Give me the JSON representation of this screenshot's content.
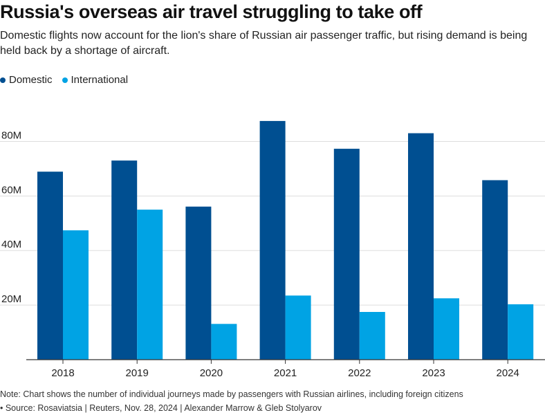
{
  "header": {
    "title": "Russia's overseas air travel struggling to take off",
    "subtitle": "Domestic flights now account for the lion's share of Russian air passenger traffic, but rising demand is being held back by a shortage of aircraft."
  },
  "footer": {
    "note": "Note: Chart shows the number of individual journeys made by passengers with Russian airlines, including foreign citizens",
    "source": "• Source: Rosaviatsia | Reuters, Nov. 28, 2024 | Alexander Marrow & Gleb Stolyarov"
  },
  "colors": {
    "domestic": "#004f91",
    "international": "#00a3e4",
    "grid": "#dddddd",
    "axis": "#333333"
  },
  "chart_data": {
    "type": "bar",
    "title": "Russia's overseas air travel struggling to take off",
    "subtitle": "Domestic flights now account for the lion's share of Russian air passenger traffic, but rising demand is being held back by a shortage of aircraft.",
    "categories": [
      "2018",
      "2019",
      "2020",
      "2021",
      "2022",
      "2023",
      "2024"
    ],
    "series": [
      {
        "name": "Domestic",
        "values": [
          68.9,
          73.0,
          56.1,
          87.5,
          77.3,
          83.0,
          65.8
        ]
      },
      {
        "name": "International",
        "values": [
          47.4,
          55.0,
          13.1,
          23.5,
          17.5,
          22.5,
          20.3
        ]
      }
    ],
    "yticks": [
      20,
      40,
      60,
      80
    ],
    "ytick_labels": [
      "20M",
      "40M",
      "60M",
      "80M"
    ],
    "ylim": [
      0,
      90
    ],
    "grid": true,
    "legend": "top-left"
  }
}
